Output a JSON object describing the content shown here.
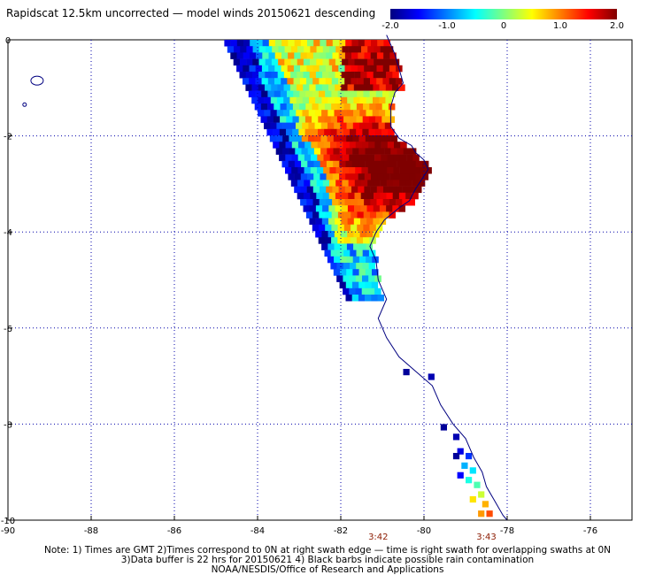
{
  "title": "Rapidscat 12.5km uncorrected — model winds 20150621 descending",
  "colorbar": {
    "min": -2.0,
    "max": 2.0,
    "tick_labels": [
      "-2.0",
      "-1.0",
      "0",
      "1.0",
      "2.0"
    ],
    "colors": [
      "#00007f",
      "#0000ff",
      "#007fff",
      "#00ffff",
      "#7fff7f",
      "#ffff00",
      "#ff7f00",
      "#ff0000",
      "#7f0000"
    ]
  },
  "map": {
    "lon_range": [
      -90,
      -75
    ],
    "lat_range": [
      -10,
      0
    ],
    "x_tick_labels": [
      "-90",
      "-88",
      "-86",
      "-84",
      "-82",
      "-80",
      "-78",
      "-76"
    ],
    "y_tick_labels": [
      "0",
      "-2",
      "-4",
      "-6",
      "-8",
      "-10"
    ],
    "time_labels": [
      "3:42",
      "3:43"
    ],
    "time_label_color": "#8b1a00",
    "grid": "dotted"
  },
  "notes": [
    "Note: 1) Times are GMT 2)Times correspond to 0N at right swath edge — time is right swath for overlapping swaths at 0N",
    "3)Data buffer is 22 hrs for 20150621 4) Black barbs indicate possible rain contamination",
    "NOAA/NESDIS/Office of Research and Applications"
  ]
}
